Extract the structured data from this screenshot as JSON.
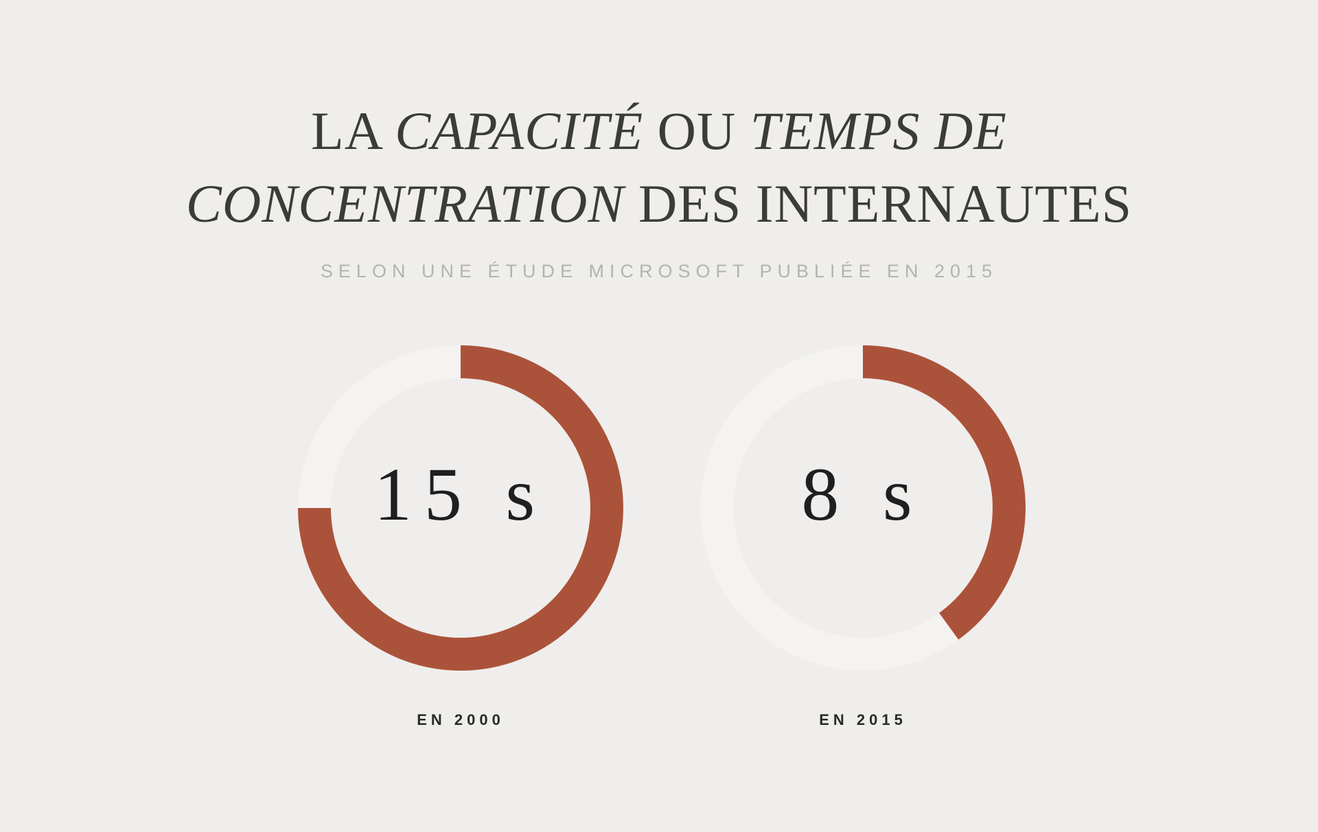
{
  "title": {
    "line1": [
      {
        "text": "LA ",
        "italic": false
      },
      {
        "text": "CAPACITÉ",
        "italic": true
      },
      {
        "text": " OU ",
        "italic": false
      },
      {
        "text": "TEMPS DE",
        "italic": true
      }
    ],
    "line2": [
      {
        "text": "CONCENTRATION",
        "italic": true
      },
      {
        "text": " DES INTERNAUTES",
        "italic": false
      }
    ]
  },
  "subtitle": "SELON UNE ÉTUDE MICROSOFT PUBLIÉE EN 2015",
  "colors": {
    "background": "#efeeec",
    "track": "#f4f3f2",
    "fill": "#ab533a"
  },
  "chart_data": [
    {
      "type": "donut",
      "value": 15,
      "max": 20,
      "value_label": "15 s",
      "category": "EN 2000"
    },
    {
      "type": "donut",
      "value": 8,
      "max": 20,
      "value_label": "8 s",
      "category": "EN 2015"
    }
  ]
}
